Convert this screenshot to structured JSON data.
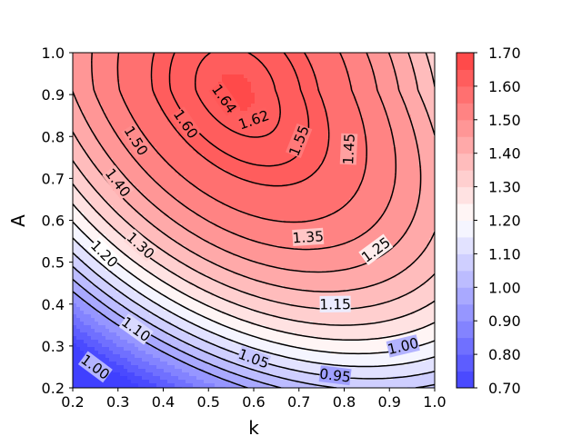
{
  "chart_data": {
    "type": "contour",
    "title": "",
    "xlabel": "k",
    "ylabel": "A",
    "xlim": [
      0.2,
      1.0
    ],
    "ylim": [
      0.2,
      1.0
    ],
    "x_ticks": [
      "0.2",
      "0.3",
      "0.4",
      "0.5",
      "0.6",
      "0.7",
      "0.8",
      "0.9",
      "1.0"
    ],
    "y_ticks": [
      "0.2",
      "0.3",
      "0.4",
      "0.5",
      "0.6",
      "0.7",
      "0.8",
      "0.9",
      "1.0"
    ],
    "peak": {
      "k": 0.56,
      "A": 0.91,
      "value": 1.652
    },
    "colormap": {
      "low": "#4040ff",
      "mid": "#ffffff",
      "high": "#ff4040",
      "low_value": 0.7,
      "mid_value": 1.2,
      "high_value": 1.7
    },
    "colorbar_ticks": [
      "0.70",
      "0.80",
      "0.90",
      "1.00",
      "1.10",
      "1.20",
      "1.30",
      "1.40",
      "1.50",
      "1.60",
      "1.70"
    ],
    "contour_levels": [
      0.95,
      1.0,
      1.05,
      1.1,
      1.15,
      1.2,
      1.25,
      1.3,
      1.35,
      1.4,
      1.45,
      1.5,
      1.55,
      1.6,
      1.62,
      1.64
    ],
    "contour_labels": [
      {
        "text": "1.64",
        "k": 0.535,
        "A": 0.89
      },
      {
        "text": "1.62",
        "k": 0.6,
        "A": 0.84
      },
      {
        "text": "1.60",
        "k": 0.45,
        "A": 0.83
      },
      {
        "text": "1.55",
        "k": 0.7,
        "A": 0.79
      },
      {
        "text": "1.50",
        "k": 0.34,
        "A": 0.79
      },
      {
        "text": "1.45",
        "k": 0.81,
        "A": 0.77
      },
      {
        "text": "1.40",
        "k": 0.3,
        "A": 0.69
      },
      {
        "text": "1.35",
        "k": 0.72,
        "A": 0.56
      },
      {
        "text": "1.30",
        "k": 0.35,
        "A": 0.54
      },
      {
        "text": "1.25",
        "k": 0.87,
        "A": 0.53
      },
      {
        "text": "1.20",
        "k": 0.27,
        "A": 0.52
      },
      {
        "text": "1.15",
        "k": 0.78,
        "A": 0.4
      },
      {
        "text": "1.10",
        "k": 0.34,
        "A": 0.34
      },
      {
        "text": "1.05",
        "k": 0.6,
        "A": 0.27
      },
      {
        "text": "1.00",
        "k": 0.93,
        "A": 0.3
      },
      {
        "text": "1.00",
        "k": 0.25,
        "A": 0.25
      },
      {
        "text": "0.95",
        "k": 0.78,
        "A": 0.23
      }
    ]
  }
}
